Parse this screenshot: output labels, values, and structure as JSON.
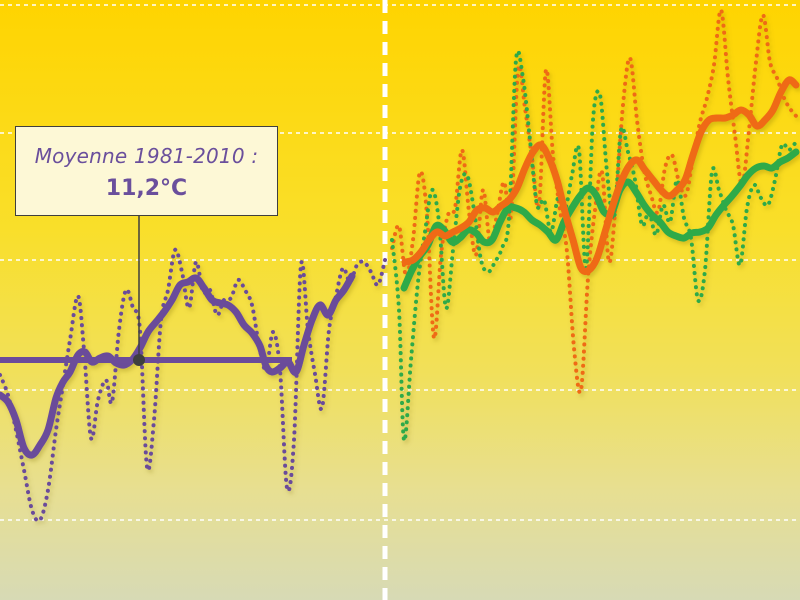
{
  "chart_data": {
    "type": "line",
    "title": "",
    "xlabel": "",
    "ylabel": "",
    "grid": true,
    "reference_line": {
      "value": 11.2,
      "color": "#6b4c9a"
    },
    "annotation": {
      "label": "Moyenne 1981-2010 :",
      "value_text": "11,2°C"
    },
    "colors": {
      "observed": "#6b4c9a",
      "scenario_orange": "#ef6a12",
      "scenario_green": "#2faa4a",
      "grid": "#ffffff",
      "divider": "#ffffff"
    },
    "series": [
      {
        "key": "observed",
        "style": "dotted-annual",
        "points": [
          [
            0,
            375
          ],
          [
            8,
            395
          ],
          [
            16,
            430
          ],
          [
            24,
            470
          ],
          [
            32,
            510
          ],
          [
            40,
            520
          ],
          [
            48,
            490
          ],
          [
            56,
            430
          ],
          [
            63,
            385
          ],
          [
            70,
            340
          ],
          [
            78,
            296
          ],
          [
            84,
            350
          ],
          [
            91,
            438
          ],
          [
            98,
            400
          ],
          [
            106,
            380
          ],
          [
            112,
            402
          ],
          [
            119,
            330
          ],
          [
            126,
            290
          ],
          [
            133,
            308
          ],
          [
            140,
            330
          ],
          [
            147,
            467
          ],
          [
            154,
            420
          ],
          [
            161,
            320
          ],
          [
            168,
            290
          ],
          [
            175,
            250
          ],
          [
            182,
            272
          ],
          [
            189,
            308
          ],
          [
            196,
            262
          ],
          [
            203,
            292
          ],
          [
            210,
            290
          ],
          [
            217,
            315
          ],
          [
            224,
            300
          ],
          [
            231,
            298
          ],
          [
            238,
            280
          ],
          [
            245,
            290
          ],
          [
            252,
            305
          ],
          [
            259,
            345
          ],
          [
            266,
            370
          ],
          [
            273,
            332
          ],
          [
            280,
            370
          ],
          [
            287,
            488
          ],
          [
            294,
            440
          ],
          [
            301,
            265
          ],
          [
            308,
            330
          ],
          [
            315,
            374
          ],
          [
            322,
            408
          ],
          [
            329,
            330
          ],
          [
            336,
            296
          ],
          [
            343,
            268
          ],
          [
            350,
            282
          ],
          [
            357,
            265
          ],
          [
            364,
            262
          ],
          [
            371,
            272
          ],
          [
            378,
            285
          ],
          [
            385,
            260
          ]
        ]
      },
      {
        "key": "observed",
        "style": "smoothed",
        "points": [
          [
            0,
            395
          ],
          [
            8,
            402
          ],
          [
            16,
            420
          ],
          [
            24,
            448
          ],
          [
            32,
            455
          ],
          [
            40,
            445
          ],
          [
            48,
            430
          ],
          [
            56,
            398
          ],
          [
            63,
            382
          ],
          [
            70,
            372
          ],
          [
            78,
            355
          ],
          [
            85,
            352
          ],
          [
            92,
            362
          ],
          [
            100,
            358
          ],
          [
            108,
            356
          ],
          [
            116,
            363
          ],
          [
            124,
            365
          ],
          [
            132,
            360
          ],
          [
            140,
            348
          ],
          [
            148,
            332
          ],
          [
            156,
            322
          ],
          [
            164,
            312
          ],
          [
            172,
            300
          ],
          [
            180,
            285
          ],
          [
            188,
            282
          ],
          [
            196,
            278
          ],
          [
            204,
            288
          ],
          [
            212,
            300
          ],
          [
            220,
            303
          ],
          [
            228,
            305
          ],
          [
            236,
            312
          ],
          [
            244,
            325
          ],
          [
            252,
            333
          ],
          [
            260,
            346
          ],
          [
            266,
            366
          ],
          [
            272,
            372
          ],
          [
            280,
            368
          ],
          [
            288,
            362
          ],
          [
            296,
            372
          ],
          [
            304,
            345
          ],
          [
            312,
            320
          ],
          [
            320,
            305
          ],
          [
            328,
            315
          ],
          [
            336,
            300
          ],
          [
            344,
            290
          ],
          [
            352,
            276
          ]
        ]
      },
      {
        "key": "scenario_orange",
        "style": "dotted-annual",
        "points": [
          [
            392,
            248
          ],
          [
            399,
            226
          ],
          [
            406,
            276
          ],
          [
            413,
            240
          ],
          [
            420,
            172
          ],
          [
            427,
            215
          ],
          [
            434,
            338
          ],
          [
            441,
            255
          ],
          [
            448,
            215
          ],
          [
            455,
            208
          ],
          [
            462,
            150
          ],
          [
            469,
            212
          ],
          [
            476,
            255
          ],
          [
            483,
            190
          ],
          [
            490,
            242
          ],
          [
            497,
            215
          ],
          [
            504,
            182
          ],
          [
            511,
            215
          ],
          [
            518,
            70
          ],
          [
            525,
            108
          ],
          [
            532,
            158
          ],
          [
            539,
            205
          ],
          [
            546,
            70
          ],
          [
            553,
            155
          ],
          [
            560,
            210
          ],
          [
            567,
            252
          ],
          [
            574,
            348
          ],
          [
            581,
            390
          ],
          [
            588,
            278
          ],
          [
            595,
            210
          ],
          [
            602,
            172
          ],
          [
            609,
            262
          ],
          [
            616,
            200
          ],
          [
            623,
            105
          ],
          [
            630,
            58
          ],
          [
            637,
            120
          ],
          [
            644,
            170
          ],
          [
            651,
            195
          ],
          [
            658,
            212
          ],
          [
            665,
            168
          ],
          [
            672,
            155
          ],
          [
            679,
            182
          ],
          [
            686,
            195
          ],
          [
            693,
            158
          ],
          [
            700,
            122
          ],
          [
            707,
            98
          ],
          [
            714,
            65
          ],
          [
            721,
            10
          ],
          [
            728,
            78
          ],
          [
            735,
            135
          ],
          [
            742,
            185
          ],
          [
            749,
            130
          ],
          [
            756,
            62
          ],
          [
            763,
            15
          ],
          [
            770,
            62
          ],
          [
            777,
            78
          ],
          [
            784,
            98
          ],
          [
            791,
            110
          ],
          [
            798,
            118
          ]
        ]
      },
      {
        "key": "scenario_green",
        "style": "dotted-annual",
        "points": [
          [
            392,
            240
          ],
          [
            399,
            310
          ],
          [
            404,
            440
          ],
          [
            411,
            360
          ],
          [
            418,
            282
          ],
          [
            425,
            232
          ],
          [
            432,
            190
          ],
          [
            439,
            222
          ],
          [
            446,
            308
          ],
          [
            453,
            250
          ],
          [
            460,
            188
          ],
          [
            467,
            175
          ],
          [
            474,
            210
          ],
          [
            481,
            260
          ],
          [
            488,
            272
          ],
          [
            495,
            262
          ],
          [
            502,
            248
          ],
          [
            509,
            218
          ],
          [
            516,
            60
          ],
          [
            523,
            78
          ],
          [
            530,
            140
          ],
          [
            537,
            205
          ],
          [
            544,
            200
          ],
          [
            551,
            232
          ],
          [
            558,
            198
          ],
          [
            565,
            210
          ],
          [
            572,
            175
          ],
          [
            579,
            150
          ],
          [
            586,
            268
          ],
          [
            593,
            120
          ],
          [
            600,
            95
          ],
          [
            607,
            172
          ],
          [
            614,
            218
          ],
          [
            621,
            130
          ],
          [
            628,
            152
          ],
          [
            635,
            180
          ],
          [
            642,
            225
          ],
          [
            649,
            212
          ],
          [
            656,
            235
          ],
          [
            663,
            205
          ],
          [
            670,
            222
          ],
          [
            677,
            180
          ],
          [
            684,
            218
          ],
          [
            691,
            238
          ],
          [
            698,
            300
          ],
          [
            705,
            270
          ],
          [
            712,
            172
          ],
          [
            719,
            190
          ],
          [
            726,
            210
          ],
          [
            733,
            225
          ],
          [
            740,
            265
          ],
          [
            747,
            208
          ],
          [
            754,
            185
          ],
          [
            761,
            198
          ],
          [
            768,
            205
          ],
          [
            775,
            180
          ],
          [
            782,
            145
          ],
          [
            789,
            150
          ],
          [
            796,
            142
          ]
        ]
      },
      {
        "key": "scenario_green",
        "style": "smoothed",
        "points": [
          [
            404,
            288
          ],
          [
            412,
            270
          ],
          [
            420,
            256
          ],
          [
            428,
            245
          ],
          [
            436,
            226
          ],
          [
            444,
            230
          ],
          [
            452,
            242
          ],
          [
            460,
            238
          ],
          [
            468,
            230
          ],
          [
            476,
            233
          ],
          [
            484,
            242
          ],
          [
            492,
            240
          ],
          [
            500,
            222
          ],
          [
            508,
            208
          ],
          [
            516,
            208
          ],
          [
            524,
            212
          ],
          [
            532,
            220
          ],
          [
            540,
            225
          ],
          [
            548,
            232
          ],
          [
            556,
            240
          ],
          [
            564,
            222
          ],
          [
            572,
            208
          ],
          [
            580,
            196
          ],
          [
            588,
            188
          ],
          [
            596,
            195
          ],
          [
            604,
            212
          ],
          [
            612,
            212
          ],
          [
            620,
            190
          ],
          [
            628,
            182
          ],
          [
            636,
            192
          ],
          [
            644,
            205
          ],
          [
            652,
            215
          ],
          [
            660,
            222
          ],
          [
            668,
            232
          ],
          [
            676,
            236
          ],
          [
            684,
            238
          ],
          [
            692,
            233
          ],
          [
            700,
            232
          ],
          [
            708,
            228
          ],
          [
            716,
            215
          ],
          [
            724,
            205
          ],
          [
            732,
            196
          ],
          [
            740,
            186
          ],
          [
            748,
            175
          ],
          [
            756,
            168
          ],
          [
            764,
            166
          ],
          [
            772,
            168
          ],
          [
            780,
            162
          ],
          [
            788,
            158
          ],
          [
            796,
            152
          ]
        ]
      },
      {
        "key": "scenario_orange",
        "style": "smoothed",
        "points": [
          [
            405,
            262
          ],
          [
            413,
            260
          ],
          [
            421,
            252
          ],
          [
            429,
            240
          ],
          [
            437,
            232
          ],
          [
            445,
            236
          ],
          [
            453,
            232
          ],
          [
            461,
            228
          ],
          [
            469,
            222
          ],
          [
            477,
            210
          ],
          [
            485,
            208
          ],
          [
            493,
            212
          ],
          [
            501,
            206
          ],
          [
            509,
            200
          ],
          [
            517,
            188
          ],
          [
            525,
            168
          ],
          [
            533,
            152
          ],
          [
            541,
            145
          ],
          [
            549,
            158
          ],
          [
            557,
            180
          ],
          [
            565,
            212
          ],
          [
            573,
            240
          ],
          [
            581,
            268
          ],
          [
            589,
            270
          ],
          [
            597,
            258
          ],
          [
            605,
            232
          ],
          [
            613,
            205
          ],
          [
            621,
            182
          ],
          [
            629,
            166
          ],
          [
            637,
            160
          ],
          [
            645,
            170
          ],
          [
            653,
            180
          ],
          [
            661,
            190
          ],
          [
            669,
            196
          ],
          [
            677,
            190
          ],
          [
            685,
            180
          ],
          [
            693,
            155
          ],
          [
            701,
            132
          ],
          [
            709,
            120
          ],
          [
            717,
            118
          ],
          [
            725,
            118
          ],
          [
            733,
            115
          ],
          [
            741,
            110
          ],
          [
            749,
            115
          ],
          [
            757,
            126
          ],
          [
            765,
            120
          ],
          [
            773,
            110
          ],
          [
            781,
            92
          ],
          [
            789,
            80
          ],
          [
            796,
            85
          ]
        ]
      }
    ]
  }
}
